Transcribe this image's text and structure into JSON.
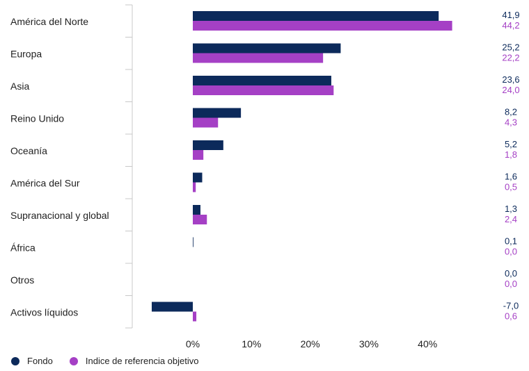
{
  "chart_data": {
    "type": "bar",
    "orientation": "horizontal",
    "categories": [
      "América del Norte",
      "Europa",
      "Asia",
      "Reino Unido",
      "Oceanía",
      "América del Sur",
      "Supranacional y global",
      "África",
      "Otros",
      "Activos líquidos"
    ],
    "series": [
      {
        "name": "Fondo",
        "color": "#0c2a5b",
        "values": [
          41.9,
          25.2,
          23.6,
          8.2,
          5.2,
          1.6,
          1.3,
          0.1,
          0.0,
          -7.0
        ],
        "labels": [
          "41,9",
          "25,2",
          "23,6",
          "8,2",
          "5,2",
          "1,6",
          "1,3",
          "0,1",
          "0,0",
          "-7,0"
        ]
      },
      {
        "name": "Indice de referencia objetivo",
        "color": "#a540c5",
        "values": [
          44.2,
          22.2,
          24.0,
          4.3,
          1.8,
          0.5,
          2.4,
          0.0,
          0.0,
          0.6
        ],
        "labels": [
          "44,2",
          "22,2",
          "24,0",
          "4,3",
          "1,8",
          "0,5",
          "2,4",
          "0,0",
          "0,0",
          "0,6"
        ]
      }
    ],
    "x_ticks": [
      0,
      10,
      20,
      30,
      40
    ],
    "x_tick_labels": [
      "0%",
      "10%",
      "20%",
      "30%",
      "40%"
    ],
    "xlim": [
      -8,
      50
    ],
    "legend_position": "bottom-left",
    "grid": false
  },
  "legend": {
    "fondo_label": "Fondo",
    "indice_label": "Indice de referencia objetivo"
  }
}
